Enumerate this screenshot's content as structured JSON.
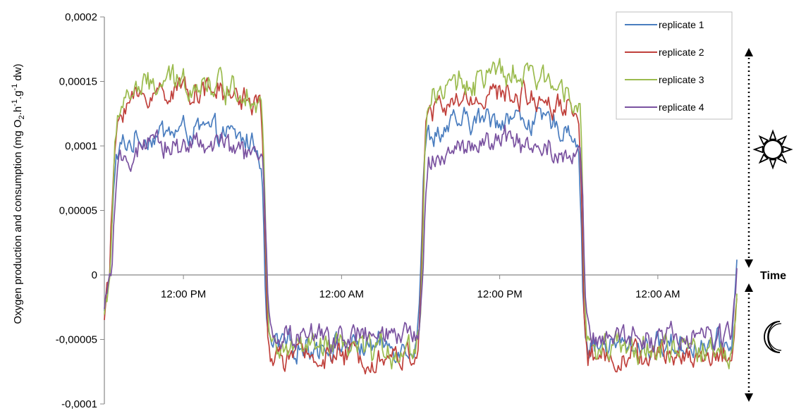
{
  "chart_data": {
    "type": "line",
    "ylabel_parts": [
      "Oxygen production and consumption (mg O",
      "2",
      ".h",
      "-1",
      ".g",
      "-1",
      " dw)"
    ],
    "ylim": [
      -0.0001,
      0.0002
    ],
    "yticks": [
      {
        "value": 0.0002,
        "label": "0,0002"
      },
      {
        "value": 0.00015,
        "label": "0,00015"
      },
      {
        "value": 0.0001,
        "label": "0,0001"
      },
      {
        "value": 5e-05,
        "label": "0,00005"
      },
      {
        "value": 0,
        "label": "0"
      },
      {
        "value": -5e-05,
        "label": "-0,00005"
      },
      {
        "value": -0.0001,
        "label": "-0,0001"
      }
    ],
    "xlim": [
      0,
      48
    ],
    "xticks": [
      {
        "value": 6,
        "label": "12:00 PM"
      },
      {
        "value": 18,
        "label": "12:00 AM"
      },
      {
        "value": 30,
        "label": "12:00 PM"
      },
      {
        "value": 42,
        "label": "12:00 AM"
      }
    ],
    "time_label": "Time",
    "day_periods": [
      [
        0,
        12
      ],
      [
        24,
        36
      ]
    ],
    "series": [
      {
        "name": "replicate 1",
        "color": "#4a7dbf",
        "day_level": 0.0001,
        "day_level2": 0.00011,
        "night_level": -5.5e-05,
        "noise": 7e-06
      },
      {
        "name": "replicate 2",
        "color": "#c0403b",
        "day_level": 0.000132,
        "day_level2": 0.000128,
        "night_level": -6.3e-05,
        "noise": 7e-06
      },
      {
        "name": "replicate 3",
        "color": "#9bbb4e",
        "day_level": 0.000138,
        "day_level2": 0.000142,
        "night_level": -5.8e-05,
        "noise": 8e-06
      },
      {
        "name": "replicate 4",
        "color": "#7a52a0",
        "day_level": 9e-05,
        "day_level2": 9.2e-05,
        "night_level": -4.8e-05,
        "noise": 7e-06
      }
    ],
    "legend_position": "top-right",
    "icons": {
      "day": "sun-icon",
      "night": "moon-icon"
    }
  }
}
